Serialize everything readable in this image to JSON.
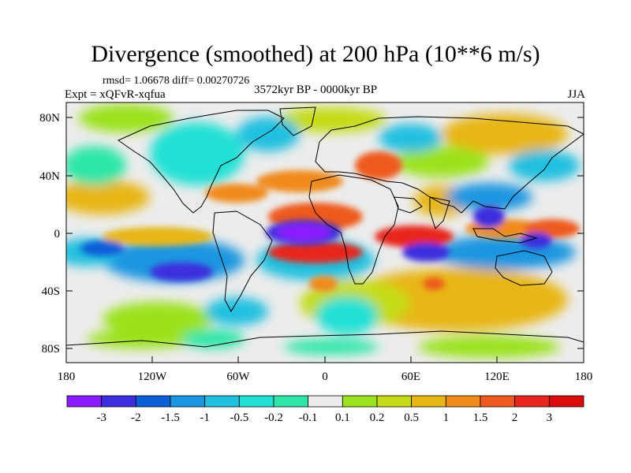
{
  "title": "Divergence (smoothed) at 200 hPa (10**6 m/s)",
  "stats": "rmsd= 1.06678 diff= 0.00270726",
  "experiment": "Expt = xQFvR-xqfua",
  "period": "3572kyr BP - 0000kyr BP",
  "season": "JJA",
  "axes": {
    "lon_ticks": [
      "180",
      "120W",
      "60W",
      "0",
      "60E",
      "120E",
      "180"
    ],
    "lat_ticks": [
      "80N",
      "40N",
      "0",
      "40S",
      "80S"
    ]
  },
  "colorbar": {
    "labels": [
      "-3",
      "-2",
      "-1.5",
      "-1",
      "-0.5",
      "-0.2",
      "-0.1",
      "0.1",
      "0.2",
      "0.5",
      "1",
      "1.5",
      "2",
      "3"
    ],
    "colors": [
      "#8c1aff",
      "#3d2edd",
      "#0d5fd8",
      "#1a96e0",
      "#21c0e0",
      "#22e0d4",
      "#2ee6a8",
      "#ececec",
      "#9be21f",
      "#c4dc18",
      "#e8b615",
      "#f08a1a",
      "#ee5a1f",
      "#e8261e",
      "#dd0c0c"
    ]
  }
}
